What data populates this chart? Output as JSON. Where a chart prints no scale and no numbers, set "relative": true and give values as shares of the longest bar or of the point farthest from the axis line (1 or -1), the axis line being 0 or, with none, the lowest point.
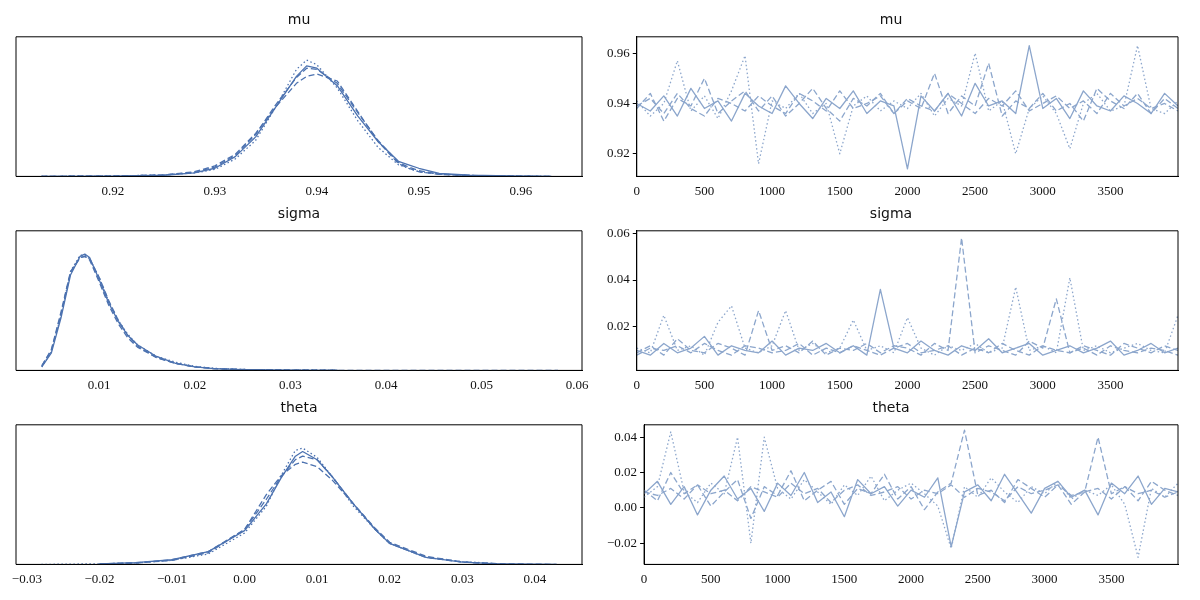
{
  "chart_data": [
    {
      "type": "line",
      "title": "mu",
      "relative": true,
      "xlim": [
        0.9105,
        0.966
      ],
      "xticks": [
        0.92,
        0.93,
        0.94,
        0.95,
        0.96
      ],
      "x": [
        0.913,
        0.92,
        0.925,
        0.928,
        0.93,
        0.932,
        0.934,
        0.936,
        0.938,
        0.939,
        0.94,
        0.942,
        0.944,
        0.946,
        0.948,
        0.949,
        0.95,
        0.952,
        0.955,
        0.96,
        0.963
      ],
      "series": [
        {
          "color": "#4c72b0",
          "line_style": "solid",
          "values": [
            0,
            0.003,
            0.01,
            0.03,
            0.07,
            0.17,
            0.34,
            0.6,
            0.86,
            0.95,
            0.93,
            0.78,
            0.52,
            0.3,
            0.13,
            0.1,
            0.07,
            0.025,
            0.01,
            0.003,
            0
          ]
        },
        {
          "color": "#4c72b0",
          "line_style": "dashed",
          "values": [
            0,
            0.003,
            0.012,
            0.035,
            0.08,
            0.18,
            0.36,
            0.62,
            0.85,
            0.93,
            0.92,
            0.8,
            0.55,
            0.31,
            0.12,
            0.08,
            0.05,
            0.02,
            0.008,
            0.002,
            0
          ]
        },
        {
          "color": "#4c72b0",
          "line_style": "dotted",
          "values": [
            0,
            0.004,
            0.012,
            0.03,
            0.06,
            0.15,
            0.31,
            0.6,
            0.92,
            1.0,
            0.96,
            0.76,
            0.48,
            0.25,
            0.1,
            0.07,
            0.04,
            0.02,
            0.008,
            0.003,
            0
          ]
        },
        {
          "color": "#4c72b0",
          "line_style": "dashed",
          "values": [
            0,
            0.003,
            0.012,
            0.04,
            0.09,
            0.19,
            0.37,
            0.6,
            0.8,
            0.86,
            0.88,
            0.82,
            0.56,
            0.3,
            0.11,
            0.07,
            0.04,
            0.018,
            0.007,
            0.002,
            0
          ]
        }
      ]
    },
    {
      "type": "line",
      "title": "mu",
      "xlim": [
        0,
        3999
      ],
      "xticks": [
        0,
        500,
        1000,
        1500,
        2000,
        2500,
        3000,
        3500
      ],
      "ylim": [
        0.911,
        0.9665
      ],
      "yticks": [
        0.92,
        0.94,
        0.96
      ],
      "x": [
        0,
        100,
        200,
        300,
        400,
        500,
        600,
        700,
        800,
        900,
        1000,
        1100,
        1200,
        1300,
        1400,
        1500,
        1600,
        1700,
        1800,
        1900,
        2000,
        2100,
        2200,
        2300,
        2400,
        2500,
        2600,
        2700,
        2800,
        2900,
        3000,
        3100,
        3200,
        3300,
        3400,
        3500,
        3600,
        3700,
        3800,
        3900,
        3999
      ],
      "series": [
        {
          "color": "#8ca6cc",
          "line_style": "solid",
          "values": [
            0.94,
            0.937,
            0.943,
            0.935,
            0.946,
            0.938,
            0.941,
            0.933,
            0.944,
            0.939,
            0.936,
            0.947,
            0.94,
            0.934,
            0.942,
            0.938,
            0.945,
            0.936,
            0.941,
            0.939,
            0.914,
            0.943,
            0.937,
            0.944,
            0.935,
            0.948,
            0.939,
            0.941,
            0.936,
            0.963,
            0.938,
            0.942,
            0.934,
            0.945,
            0.939,
            0.937,
            0.943,
            0.94,
            0.936,
            0.944,
            0.939
          ]
        },
        {
          "color": "#8ca6cc",
          "line_style": "dashed",
          "values": [
            0.938,
            0.944,
            0.933,
            0.942,
            0.939,
            0.95,
            0.936,
            0.941,
            0.945,
            0.937,
            0.943,
            0.935,
            0.94,
            0.946,
            0.938,
            0.933,
            0.942,
            0.939,
            0.944,
            0.936,
            0.941,
            0.938,
            0.952,
            0.936,
            0.943,
            0.939,
            0.956,
            0.935,
            0.941,
            0.938,
            0.944,
            0.937,
            0.94,
            0.933,
            0.946,
            0.941,
            0.938,
            0.944,
            0.936,
            0.942,
            0.938
          ]
        },
        {
          "color": "#8ca6cc",
          "line_style": "dotted",
          "values": [
            0.941,
            0.935,
            0.94,
            0.957,
            0.937,
            0.943,
            0.934,
            0.945,
            0.959,
            0.916,
            0.941,
            0.938,
            0.944,
            0.936,
            0.94,
            0.92,
            0.939,
            0.943,
            0.937,
            0.941,
            0.938,
            0.944,
            0.935,
            0.942,
            0.939,
            0.96,
            0.937,
            0.941,
            0.92,
            0.938,
            0.943,
            0.936,
            0.922,
            0.94,
            0.944,
            0.937,
            0.939,
            0.963,
            0.938,
            0.936,
            0.941
          ]
        },
        {
          "color": "#8ca6cc",
          "line_style": "dashed",
          "values": [
            0.939,
            0.942,
            0.936,
            0.944,
            0.938,
            0.935,
            0.942,
            0.94,
            0.937,
            0.943,
            0.939,
            0.936,
            0.944,
            0.941,
            0.937,
            0.945,
            0.938,
            0.94,
            0.943,
            0.936,
            0.942,
            0.939,
            0.937,
            0.944,
            0.94,
            0.936,
            0.942,
            0.939,
            0.945,
            0.937,
            0.94,
            0.943,
            0.938,
            0.941,
            0.936,
            0.944,
            0.939,
            0.942,
            0.938,
            0.94,
            0.937
          ]
        }
      ]
    },
    {
      "type": "line",
      "title": "sigma",
      "relative": true,
      "xlim": [
        0.0013,
        0.0605
      ],
      "xticks": [
        0.01,
        0.02,
        0.03,
        0.04,
        0.05,
        0.06
      ],
      "x": [
        0.004,
        0.005,
        0.006,
        0.007,
        0.008,
        0.0085,
        0.009,
        0.01,
        0.011,
        0.012,
        0.013,
        0.014,
        0.016,
        0.018,
        0.02,
        0.022,
        0.025,
        0.03,
        0.035,
        0.04,
        0.05,
        0.058
      ],
      "series": [
        {
          "color": "#4c72b0",
          "line_style": "solid",
          "values": [
            0.03,
            0.15,
            0.45,
            0.82,
            0.98,
            1.0,
            0.97,
            0.78,
            0.58,
            0.42,
            0.3,
            0.22,
            0.12,
            0.06,
            0.03,
            0.015,
            0.007,
            0.002,
            0,
            null,
            null,
            null
          ]
        },
        {
          "color": "#4c72b0",
          "line_style": "dashed",
          "values": [
            0.04,
            0.17,
            0.48,
            0.84,
            0.97,
            0.98,
            0.95,
            0.76,
            0.56,
            0.4,
            0.28,
            0.2,
            0.11,
            0.06,
            0.03,
            0.015,
            0.006,
            0.002,
            0,
            null,
            null,
            null
          ]
        },
        {
          "color": "#4c72b0",
          "line_style": "dotted",
          "values": [
            0.03,
            0.16,
            0.47,
            0.85,
            0.99,
            0.99,
            0.96,
            0.8,
            0.59,
            0.43,
            0.31,
            0.22,
            0.12,
            0.07,
            0.035,
            0.018,
            0.008,
            0.003,
            0.001,
            null,
            null,
            null
          ]
        },
        {
          "color": "#4c72b0",
          "line_style": "dashed",
          "values": [
            0.04,
            0.18,
            0.5,
            0.85,
            0.97,
            0.98,
            0.96,
            0.8,
            0.6,
            0.43,
            0.3,
            0.21,
            0.11,
            0.06,
            0.03,
            0.016,
            0.008,
            0.003,
            0.001,
            0,
            0,
            0
          ]
        }
      ]
    },
    {
      "type": "line",
      "title": "sigma",
      "xlim": [
        0,
        3999
      ],
      "xticks": [
        0,
        500,
        1000,
        1500,
        2000,
        2500,
        3000,
        3500
      ],
      "ylim": [
        0.0015,
        0.061
      ],
      "yticks": [
        0.02,
        0.04,
        0.06
      ],
      "x": [
        0,
        100,
        200,
        300,
        400,
        500,
        600,
        700,
        800,
        900,
        1000,
        1100,
        1200,
        1300,
        1400,
        1500,
        1600,
        1700,
        1800,
        1900,
        2000,
        2100,
        2200,
        2300,
        2400,
        2500,
        2600,
        2700,
        2800,
        2900,
        3000,
        3100,
        3200,
        3300,
        3400,
        3500,
        3600,
        3700,
        3800,
        3900,
        3999
      ],
      "series": [
        {
          "color": "#8ca6cc",
          "line_style": "solid",
          "values": [
            0.01,
            0.008,
            0.013,
            0.009,
            0.011,
            0.016,
            0.008,
            0.012,
            0.01,
            0.009,
            0.014,
            0.008,
            0.011,
            0.01,
            0.013,
            0.009,
            0.012,
            0.008,
            0.036,
            0.011,
            0.009,
            0.014,
            0.01,
            0.008,
            0.012,
            0.01,
            0.015,
            0.009,
            0.011,
            0.013,
            0.008,
            0.01,
            0.012,
            0.009,
            0.011,
            0.014,
            0.008,
            0.01,
            0.013,
            0.009,
            0.011
          ]
        },
        {
          "color": "#8ca6cc",
          "line_style": "dashed",
          "values": [
            0.009,
            0.012,
            0.008,
            0.015,
            0.01,
            0.009,
            0.013,
            0.011,
            0.008,
            0.027,
            0.01,
            0.012,
            0.009,
            0.014,
            0.008,
            0.011,
            0.01,
            0.013,
            0.009,
            0.012,
            0.011,
            0.008,
            0.013,
            0.01,
            0.058,
            0.009,
            0.012,
            0.01,
            0.008,
            0.014,
            0.011,
            0.032,
            0.009,
            0.012,
            0.01,
            0.008,
            0.013,
            0.011,
            0.009,
            0.012,
            0.01
          ]
        },
        {
          "color": "#8ca6cc",
          "line_style": "dotted",
          "values": [
            0.011,
            0.009,
            0.025,
            0.01,
            0.012,
            0.008,
            0.022,
            0.029,
            0.011,
            0.009,
            0.012,
            0.027,
            0.01,
            0.013,
            0.009,
            0.011,
            0.023,
            0.01,
            0.012,
            0.009,
            0.024,
            0.011,
            0.008,
            0.012,
            0.01,
            0.013,
            0.009,
            0.011,
            0.037,
            0.01,
            0.012,
            0.009,
            0.041,
            0.01,
            0.012,
            0.009,
            0.011,
            0.013,
            0.01,
            0.009,
            0.025
          ]
        },
        {
          "color": "#8ca6cc",
          "line_style": "dashed",
          "values": [
            0.008,
            0.011,
            0.01,
            0.012,
            0.009,
            0.013,
            0.01,
            0.008,
            0.012,
            0.011,
            0.009,
            0.01,
            0.013,
            0.008,
            0.011,
            0.009,
            0.012,
            0.01,
            0.008,
            0.011,
            0.013,
            0.009,
            0.01,
            0.012,
            0.008,
            0.011,
            0.009,
            0.013,
            0.01,
            0.008,
            0.012,
            0.01,
            0.009,
            0.011,
            0.008,
            0.012,
            0.01,
            0.009,
            0.011,
            0.01,
            0.008
          ]
        }
      ]
    },
    {
      "type": "line",
      "title": "theta",
      "relative": true,
      "xlim": [
        -0.0315,
        0.0465
      ],
      "xticks": [
        {
          "value": -0.03,
          "label": "−0.03"
        },
        {
          "value": -0.02,
          "label": "−0.02"
        },
        {
          "value": -0.01,
          "label": "−0.01"
        },
        {
          "value": 0,
          "label": "0.00"
        },
        0.01,
        0.02,
        0.03,
        0.04
      ],
      "x": [
        -0.028,
        -0.02,
        -0.015,
        -0.01,
        -0.005,
        0,
        0.003,
        0.005,
        0.007,
        0.008,
        0.01,
        0.012,
        0.015,
        0.018,
        0.02,
        0.025,
        0.03,
        0.035,
        0.043
      ],
      "series": [
        {
          "color": "#4c72b0",
          "line_style": "solid",
          "values": [
            null,
            0.005,
            0.015,
            0.04,
            0.11,
            0.29,
            0.52,
            0.74,
            0.93,
            0.97,
            0.9,
            0.76,
            0.52,
            0.3,
            0.18,
            0.06,
            0.02,
            0.005,
            0
          ]
        },
        {
          "color": "#4c72b0",
          "line_style": "dashed",
          "values": [
            null,
            0.004,
            0.014,
            0.04,
            0.11,
            0.3,
            0.56,
            0.75,
            0.9,
            0.93,
            0.9,
            0.76,
            0.52,
            0.3,
            0.18,
            0.06,
            0.02,
            0.005,
            null
          ]
        },
        {
          "color": "#4c72b0",
          "line_style": "dotted",
          "values": [
            0,
            0.005,
            0.012,
            0.035,
            0.09,
            0.27,
            0.5,
            0.76,
            0.98,
            1.0,
            0.92,
            0.76,
            0.5,
            0.3,
            0.18,
            0.06,
            0.025,
            0.005,
            null
          ]
        },
        {
          "color": "#4c72b0",
          "line_style": "dashed",
          "values": [
            null,
            0.004,
            0.012,
            0.035,
            0.1,
            0.3,
            0.6,
            0.76,
            0.86,
            0.88,
            0.84,
            0.73,
            0.52,
            0.31,
            0.19,
            0.07,
            0.02,
            0.006,
            0
          ]
        }
      ]
    },
    {
      "type": "line",
      "title": "theta",
      "xlim": [
        0,
        3999
      ],
      "xticks": [
        0,
        500,
        1000,
        1500,
        2000,
        2500,
        3000,
        3500
      ],
      "ylim": [
        -0.032,
        0.047
      ],
      "yticks": [
        {
          "value": -0.02,
          "label": "−0.02"
        },
        {
          "value": 0,
          "label": "0.00"
        },
        0.02,
        0.04
      ],
      "x": [
        0,
        100,
        200,
        300,
        400,
        500,
        600,
        700,
        800,
        900,
        1000,
        1100,
        1200,
        1300,
        1400,
        1500,
        1600,
        1700,
        1800,
        1900,
        2000,
        2100,
        2200,
        2300,
        2400,
        2500,
        2600,
        2700,
        2800,
        2900,
        3000,
        3100,
        3200,
        3300,
        3400,
        3500,
        3600,
        3700,
        3800,
        3900,
        3999
      ],
      "series": [
        {
          "color": "#8ca6cc",
          "line_style": "solid",
          "values": [
            0.008,
            0.015,
            0.002,
            0.012,
            -0.004,
            0.01,
            0.018,
            0.005,
            0.011,
            -0.002,
            0.014,
            0.007,
            0.02,
            0.003,
            0.009,
            -0.005,
            0.016,
            0.008,
            0.012,
            0.001,
            0.01,
            0.006,
            0.017,
            -0.022,
            0.009,
            0.013,
            0.004,
            0.019,
            0.008,
            -0.003,
            0.011,
            0.015,
            0.006,
            0.01,
            -0.004,
            0.014,
            0.008,
            0.018,
            0.002,
            0.011,
            0.009
          ]
        },
        {
          "color": "#8ca6cc",
          "line_style": "dashed",
          "values": [
            0.01,
            0.004,
            0.02,
            0.008,
            0.013,
            0.001,
            0.009,
            0.016,
            -0.006,
            0.012,
            0.007,
            0.021,
            0.004,
            0.01,
            0.015,
            0.002,
            0.011,
            0.008,
            0.019,
            0.005,
            0.012,
            -0.001,
            0.009,
            0.014,
            0.044,
            0.007,
            0.01,
            0.003,
            0.016,
            0.011,
            0.006,
            0.013,
            0.002,
            0.009,
            0.04,
            0.008,
            0.012,
            0.004,
            0.015,
            0.01,
            0.007
          ]
        },
        {
          "color": "#8ca6cc",
          "line_style": "dotted",
          "values": [
            0.006,
            0.012,
            0.043,
            0.009,
            0.003,
            0.014,
            0.008,
            0.04,
            -0.02,
            0.04,
            0.011,
            0.005,
            0.016,
            0.009,
            0.002,
            0.013,
            0.007,
            0.018,
            0.004,
            0.01,
            0.014,
            0.008,
            0.001,
            -0.023,
            0.012,
            0.006,
            0.017,
            0.009,
            0.003,
            0.012,
            0.008,
            0.015,
            0.005,
            0.01,
            0.007,
            0.013,
            0.002,
            -0.028,
            0.011,
            0.006,
            0.014
          ]
        },
        {
          "color": "#8ca6cc",
          "line_style": "dashed",
          "values": [
            0.009,
            0.007,
            0.011,
            0.005,
            0.013,
            0.008,
            0.01,
            0.004,
            0.012,
            0.009,
            0.006,
            0.014,
            0.008,
            0.011,
            0.003,
            0.01,
            0.013,
            0.007,
            0.009,
            0.012,
            0.005,
            0.01,
            0.008,
            0.013,
            0.006,
            0.011,
            0.009,
            0.004,
            0.012,
            0.008,
            0.01,
            0.013,
            0.007,
            0.009,
            0.011,
            0.005,
            0.012,
            0.008,
            0.01,
            0.006,
            0.009
          ]
        }
      ]
    }
  ]
}
